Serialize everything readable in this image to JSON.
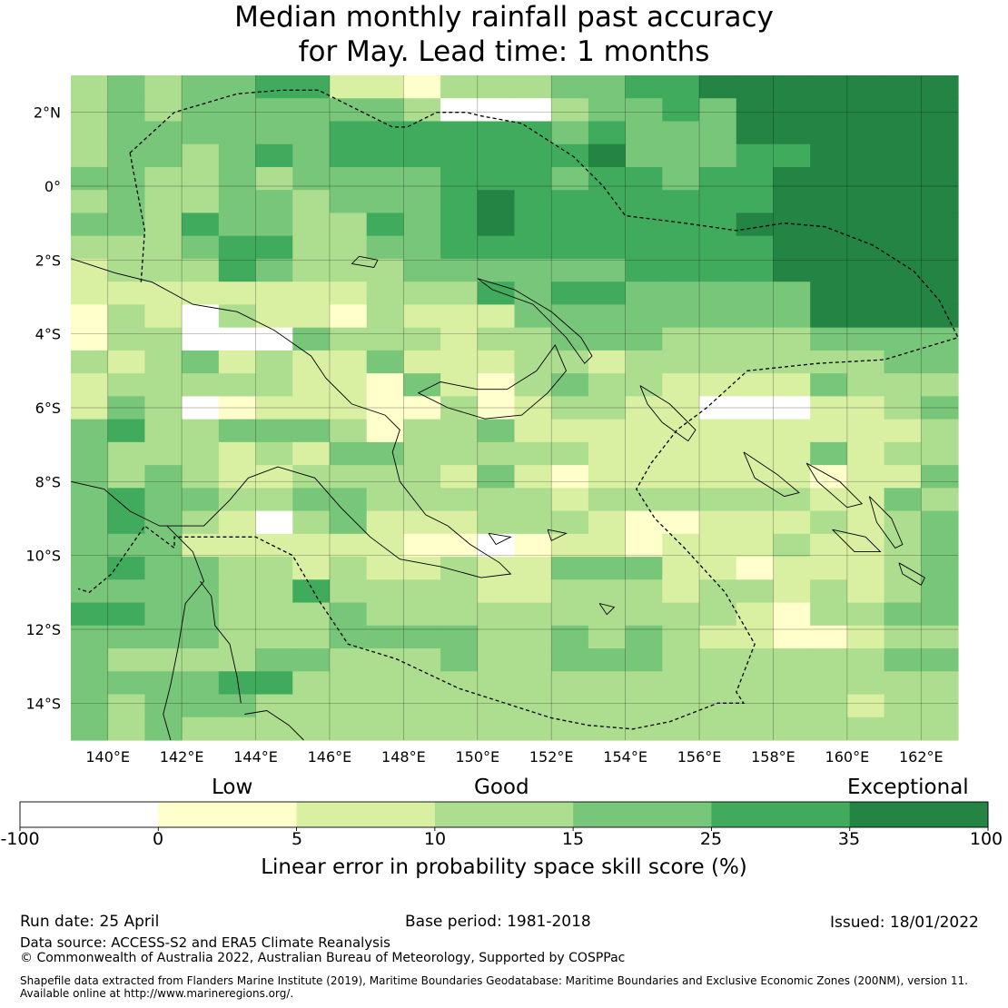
{
  "title": {
    "line1": "Median monthly rainfall past accuracy",
    "line2": "for May. Lead time: 1 months"
  },
  "map": {
    "lon_range": [
      139,
      163
    ],
    "lat_range": [
      -15,
      3
    ],
    "lon_ticks": [
      "140°E",
      "142°E",
      "144°E",
      "146°E",
      "148°E",
      "150°E",
      "152°E",
      "154°E",
      "156°E",
      "158°E",
      "160°E",
      "162°E"
    ],
    "lat_ticks": [
      "2°N",
      "0°",
      "2°S",
      "4°S",
      "6°S",
      "8°S",
      "10°S",
      "12°S",
      "14°S"
    ],
    "grid": true,
    "cell_size_deg": 0.833,
    "skill_grid_rows": [
      "343445522133344556666666",
      "343444444300034454666666",
      "344444455555545444666666",
      "344345455555556444556666",
      "443343444455545545566666",
      "343344344456555555566666",
      "443544335456555555666666",
      "333455334455555555566666",
      "233354333444444555566666",
      "222222223335455444446666",
      "132032213222444444446666",
      "133000433323344433334444",
      "323423224222332333333344",
      "233333221421343322224333",
      "243012221131233220002234",
      "453344431334222222222223",
      "433323244333332222224233",
      "434322333324212222221224",
      "454433443333323333332243",
      "454320342223332112223234",
      "444222222110122122232234",
      "454433232232244422122234",
      "444433533332233323323234",
      "554433343333333333213344",
      "444433344443343432211233",
      "433334433343344433333344",
      "444455333333333333333333",
      "434443333333333333333233",
      "434333333333333333333333"
    ]
  },
  "colorbar": {
    "category_labels": [
      "Low",
      "Good",
      "Exceptional"
    ],
    "tick_labels": [
      "-100",
      "0",
      "5",
      "10",
      "15",
      "25",
      "35",
      "100"
    ],
    "colors": [
      "#ffffff",
      "#ffffcc",
      "#d9f0a3",
      "#addd8e",
      "#78c679",
      "#41ab5d",
      "#238443"
    ],
    "xlabel": "Linear error in probability space skill score (%)"
  },
  "footer": {
    "run_date": "Run date: 25 April",
    "base_period": "Base period: 1981-2018",
    "issued": "Issued: 18/01/2022",
    "data_source": "Data source: ACCESS-S2 and ERA5 Climate Reanalysis",
    "copyright": "© Commonwealth of Australia 2022, Australian Bureau of Meteorology, Supported by COSPPac",
    "shapefile_line1": "Shapefile data extracted from Flanders Marine Institute (2019), Maritime Boundaries Geodatabase: Maritime Boundaries and Exclusive Economic Zones (200NM), version 11.",
    "shapefile_line2": "Available online at http://www.marineregions.org/."
  }
}
